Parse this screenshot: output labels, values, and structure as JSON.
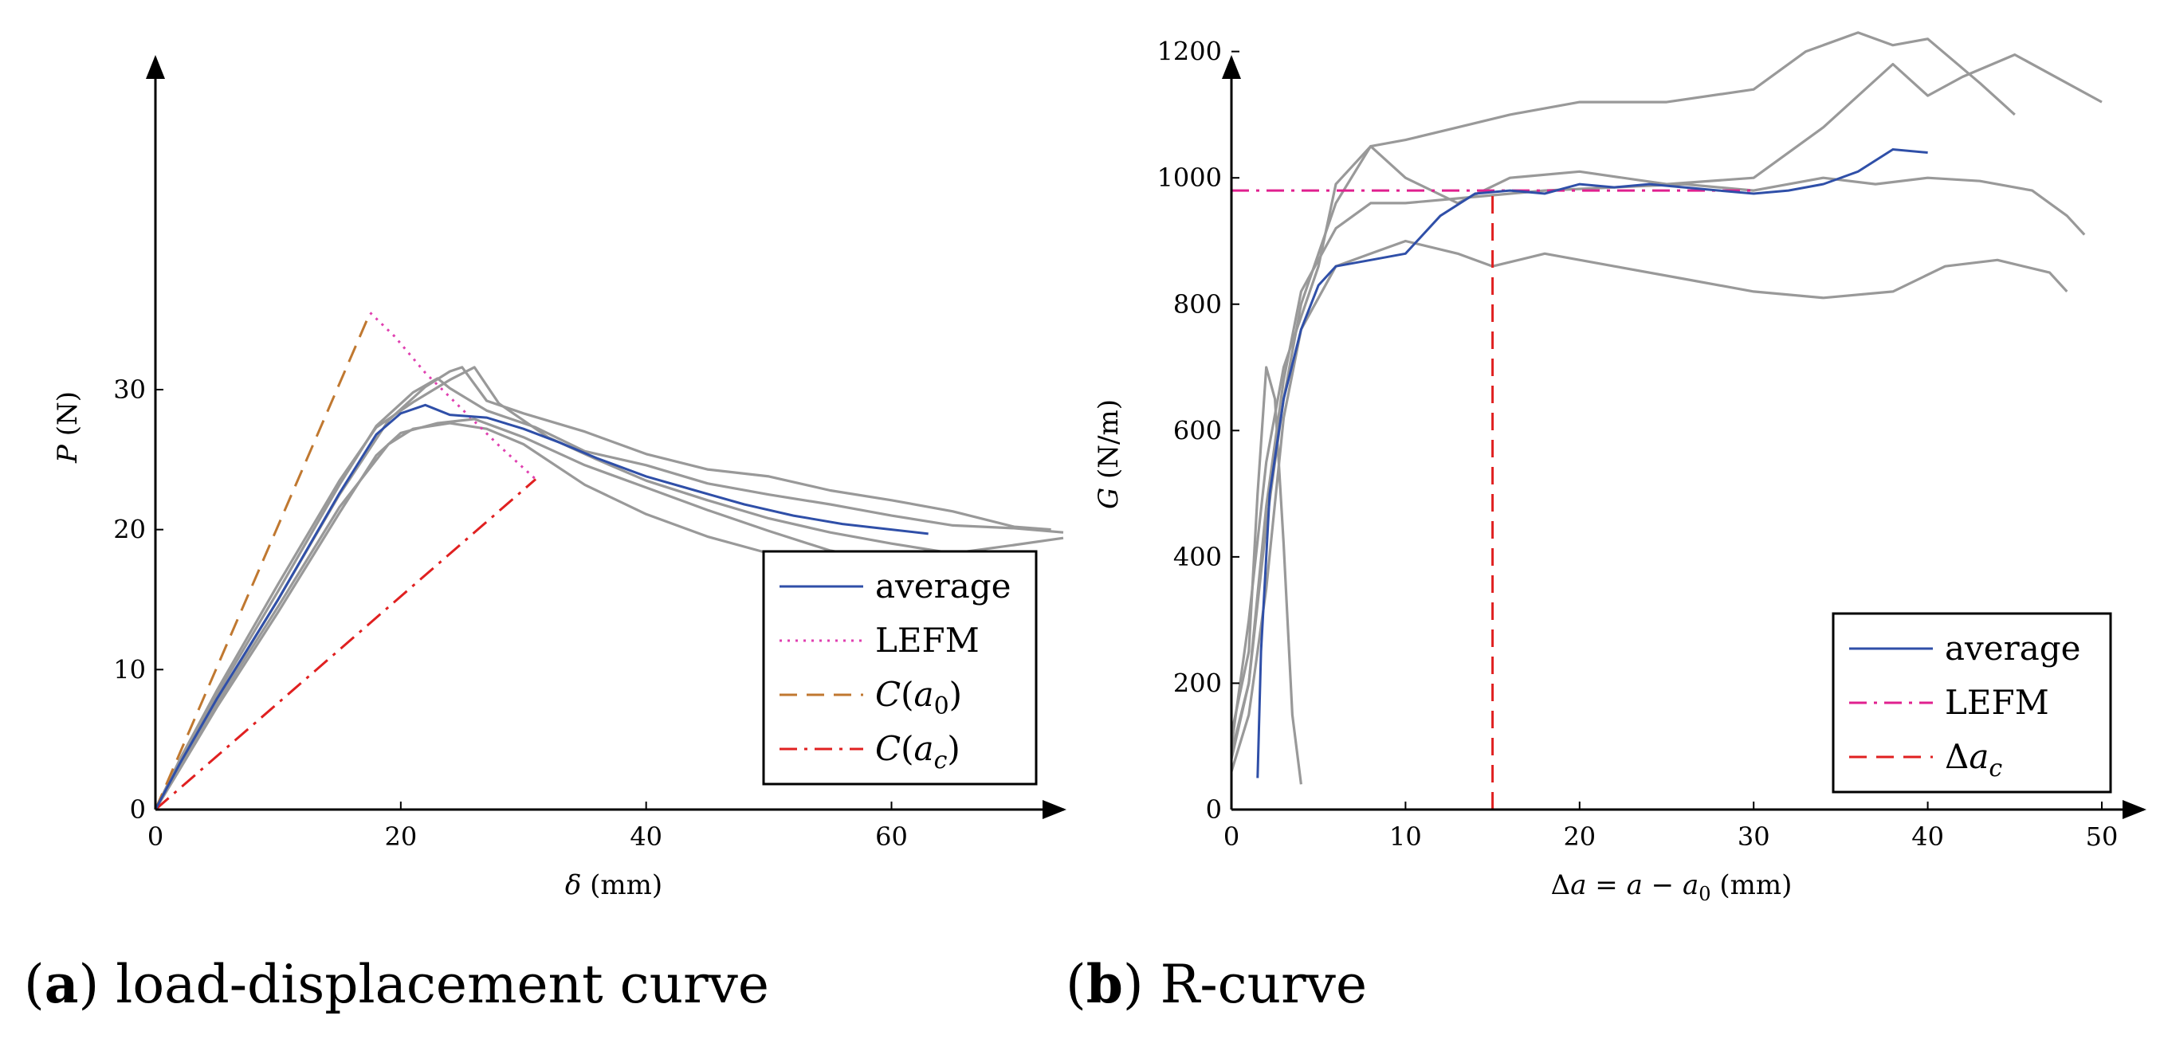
{
  "chart_data": [
    {
      "id": "a",
      "type": "line",
      "caption_letter": "a",
      "caption_text": "load-displacement curve",
      "xlabel": "δ (mm)",
      "ylabel": "P (N)",
      "xlim": [
        0,
        74
      ],
      "ylim": [
        0,
        37
      ],
      "xticks": [
        0,
        20,
        40,
        60
      ],
      "yticks": [
        0,
        10,
        20,
        30
      ],
      "grid": false,
      "legend_position": "bottom-right",
      "colors": {
        "specimens": "#999999",
        "average": "#2f4fa8",
        "LEFM": "#e040b0",
        "C_a0": "#c07830",
        "C_ac": "#e02020"
      },
      "specimens": [
        [
          [
            0,
            0
          ],
          [
            2,
            3.5
          ],
          [
            5,
            8.2
          ],
          [
            10,
            15.6
          ],
          [
            15,
            23.2
          ],
          [
            18,
            27.4
          ],
          [
            21,
            29.8
          ],
          [
            23,
            30.8
          ],
          [
            24,
            30.1
          ],
          [
            27,
            28.5
          ],
          [
            31,
            27.3
          ],
          [
            35,
            25.6
          ],
          [
            40,
            24.6
          ],
          [
            45,
            23.3
          ],
          [
            50,
            22.5
          ],
          [
            55,
            21.8
          ],
          [
            60,
            21.0
          ],
          [
            65,
            20.3
          ],
          [
            70,
            20.1
          ],
          [
            74,
            19.8
          ]
        ],
        [
          [
            0,
            0
          ],
          [
            2,
            3.2
          ],
          [
            5,
            7.8
          ],
          [
            10,
            15.0
          ],
          [
            15,
            22.5
          ],
          [
            19,
            27.8
          ],
          [
            22,
            30.2
          ],
          [
            24,
            31.3
          ],
          [
            25,
            31.6
          ],
          [
            27,
            29.2
          ],
          [
            30,
            28.3
          ],
          [
            35,
            27.0
          ],
          [
            40,
            25.4
          ],
          [
            45,
            24.3
          ],
          [
            50,
            23.8
          ],
          [
            55,
            22.8
          ],
          [
            60,
            22.1
          ],
          [
            65,
            21.3
          ],
          [
            70,
            20.2
          ],
          [
            73,
            20.0
          ]
        ],
        [
          [
            0,
            0
          ],
          [
            2,
            2.9
          ],
          [
            5,
            7.3
          ],
          [
            10,
            14.1
          ],
          [
            15,
            21.2
          ],
          [
            18,
            25.3
          ],
          [
            20,
            26.9
          ],
          [
            23,
            27.6
          ],
          [
            26,
            27.9
          ],
          [
            30,
            26.6
          ],
          [
            35,
            24.6
          ],
          [
            40,
            23.0
          ],
          [
            45,
            21.4
          ],
          [
            50,
            19.9
          ],
          [
            55,
            18.5
          ],
          [
            60,
            17.7
          ],
          [
            65,
            17.0
          ],
          [
            70,
            17.1
          ]
        ],
        [
          [
            0,
            0
          ],
          [
            2,
            3.6
          ],
          [
            5,
            8.5
          ],
          [
            10,
            16.1
          ],
          [
            15,
            23.5
          ],
          [
            18,
            27.3
          ],
          [
            21,
            29.1
          ],
          [
            24,
            30.7
          ],
          [
            26,
            31.6
          ],
          [
            28,
            29.0
          ],
          [
            32,
            26.6
          ],
          [
            36,
            25.0
          ],
          [
            40,
            23.5
          ],
          [
            45,
            22.1
          ],
          [
            50,
            20.8
          ],
          [
            55,
            19.8
          ],
          [
            60,
            19.0
          ],
          [
            65,
            18.3
          ],
          [
            70,
            18.9
          ],
          [
            74,
            19.4
          ]
        ],
        [
          [
            0,
            0
          ],
          [
            2,
            3.1
          ],
          [
            5,
            7.6
          ],
          [
            10,
            14.5
          ],
          [
            15,
            21.6
          ],
          [
            19,
            26.1
          ],
          [
            21,
            27.2
          ],
          [
            24,
            27.6
          ],
          [
            27,
            27.2
          ],
          [
            30,
            26.1
          ],
          [
            35,
            23.2
          ],
          [
            40,
            21.1
          ],
          [
            45,
            19.5
          ],
          [
            50,
            18.3
          ],
          [
            55,
            17.4
          ],
          [
            60,
            17.1
          ],
          [
            63,
            16.8
          ],
          [
            66,
            16.4
          ]
        ]
      ],
      "series": [
        {
          "name": "average",
          "points": [
            [
              0,
              0
            ],
            [
              2,
              3.3
            ],
            [
              5,
              7.9
            ],
            [
              10,
              15.0
            ],
            [
              15,
              22.6
            ],
            [
              18,
              26.8
            ],
            [
              20,
              28.3
            ],
            [
              22,
              28.9
            ],
            [
              24,
              28.2
            ],
            [
              27,
              28.0
            ],
            [
              30,
              27.2
            ],
            [
              33,
              26.2
            ],
            [
              36,
              25.1
            ],
            [
              40,
              23.8
            ],
            [
              44,
              22.8
            ],
            [
              48,
              21.8
            ],
            [
              52,
              21.0
            ],
            [
              56,
              20.4
            ],
            [
              60,
              20.0
            ],
            [
              63,
              19.7
            ]
          ]
        },
        {
          "name": "LEFM",
          "points": [
            [
              17.5,
              35.5
            ],
            [
              19.5,
              33.8
            ],
            [
              22,
              31.2
            ],
            [
              25,
              28.6
            ],
            [
              28,
              26.0
            ],
            [
              31,
              23.6
            ]
          ]
        },
        {
          "name": "C(a0)",
          "points": [
            [
              0,
              0
            ],
            [
              17.5,
              35.5
            ]
          ]
        },
        {
          "name": "C(ac)",
          "points": [
            [
              0,
              0
            ],
            [
              31,
              23.6
            ]
          ]
        }
      ],
      "legend": [
        {
          "key": "average",
          "label": "average",
          "style": "solid"
        },
        {
          "key": "LEFM",
          "label": "LEFM",
          "style": "dotted"
        },
        {
          "key": "C_a0",
          "label": "C(a0)",
          "style": "dashed"
        },
        {
          "key": "C_ac",
          "label": "C(ac)",
          "style": "dashdot"
        }
      ]
    },
    {
      "id": "b",
      "type": "line",
      "caption_letter": "b",
      "caption_text": "R-curve",
      "xlabel": "Δa = a − a0 (mm)",
      "ylabel": "G (N/m)",
      "xlim": [
        0,
        50
      ],
      "ylim": [
        0,
        1250
      ],
      "xticks": [
        0,
        10,
        20,
        30,
        40,
        50
      ],
      "yticks": [
        0,
        200,
        400,
        600,
        800,
        1000,
        1200
      ],
      "grid": false,
      "legend_position": "bottom-right",
      "colors": {
        "specimens": "#999999",
        "average": "#2f4fa8",
        "LEFM": "#e0208f",
        "delta_ac": "#e02020"
      },
      "specimens": [
        [
          [
            0,
            80
          ],
          [
            1,
            200
          ],
          [
            2,
            450
          ],
          [
            3,
            650
          ],
          [
            4,
            800
          ],
          [
            5,
            880
          ],
          [
            6,
            960
          ],
          [
            8,
            1050
          ],
          [
            10,
            1000
          ],
          [
            13,
            960
          ],
          [
            16,
            1000
          ],
          [
            20,
            1010
          ],
          [
            25,
            990
          ],
          [
            30,
            1000
          ],
          [
            34,
            1080
          ],
          [
            38,
            1180
          ],
          [
            40,
            1130
          ],
          [
            42,
            1160
          ],
          [
            45,
            1195
          ],
          [
            48,
            1150
          ],
          [
            50,
            1120
          ]
        ],
        [
          [
            0,
            100
          ],
          [
            1,
            300
          ],
          [
            2,
            550
          ],
          [
            3,
            700
          ],
          [
            4,
            780
          ],
          [
            5,
            860
          ],
          [
            6,
            990
          ],
          [
            8,
            1050
          ],
          [
            10,
            1060
          ],
          [
            13,
            1080
          ],
          [
            16,
            1100
          ],
          [
            20,
            1120
          ],
          [
            25,
            1120
          ],
          [
            30,
            1140
          ],
          [
            33,
            1200
          ],
          [
            36,
            1230
          ],
          [
            38,
            1210
          ],
          [
            40,
            1220
          ],
          [
            43,
            1150
          ],
          [
            45,
            1100
          ]
        ],
        [
          [
            0,
            120
          ],
          [
            1,
            250
          ],
          [
            1.5,
            500
          ],
          [
            2,
            700
          ],
          [
            2.5,
            650
          ],
          [
            3,
            420
          ],
          [
            3.5,
            150
          ],
          [
            4,
            40
          ]
        ],
        [
          [
            0,
            60
          ],
          [
            1,
            150
          ],
          [
            2,
            350
          ],
          [
            3,
            620
          ],
          [
            4,
            760
          ],
          [
            6,
            860
          ],
          [
            8,
            880
          ],
          [
            10,
            900
          ],
          [
            13,
            880
          ],
          [
            15,
            860
          ],
          [
            18,
            880
          ],
          [
            22,
            860
          ],
          [
            26,
            840
          ],
          [
            30,
            820
          ],
          [
            34,
            810
          ],
          [
            38,
            820
          ],
          [
            41,
            860
          ],
          [
            44,
            870
          ],
          [
            47,
            850
          ],
          [
            48,
            820
          ]
        ],
        [
          [
            0,
            90
          ],
          [
            1,
            200
          ],
          [
            2,
            480
          ],
          [
            3,
            680
          ],
          [
            4,
            820
          ],
          [
            6,
            920
          ],
          [
            8,
            960
          ],
          [
            10,
            960
          ],
          [
            14,
            970
          ],
          [
            18,
            980
          ],
          [
            22,
            985
          ],
          [
            26,
            990
          ],
          [
            30,
            980
          ],
          [
            34,
            1000
          ],
          [
            37,
            990
          ],
          [
            40,
            1000
          ],
          [
            43,
            995
          ],
          [
            46,
            980
          ],
          [
            48,
            940
          ],
          [
            49,
            910
          ]
        ]
      ],
      "series": [
        {
          "name": "average",
          "points": [
            [
              1.5,
              50
            ],
            [
              1.7,
              250
            ],
            [
              2.2,
              500
            ],
            [
              3,
              650
            ],
            [
              4,
              760
            ],
            [
              5,
              830
            ],
            [
              6,
              860
            ],
            [
              8,
              870
            ],
            [
              10,
              880
            ],
            [
              12,
              940
            ],
            [
              14,
              975
            ],
            [
              16,
              980
            ],
            [
              18,
              975
            ],
            [
              20,
              990
            ],
            [
              22,
              985
            ],
            [
              24,
              990
            ],
            [
              26,
              985
            ],
            [
              28,
              980
            ],
            [
              30,
              975
            ],
            [
              32,
              980
            ],
            [
              34,
              990
            ],
            [
              36,
              1010
            ],
            [
              38,
              1045
            ],
            [
              40,
              1040
            ]
          ]
        },
        {
          "name": "LEFM",
          "points": [
            [
              0,
              980
            ],
            [
              30,
              980
            ]
          ]
        },
        {
          "name": "Δac",
          "points": [
            [
              15,
              0
            ],
            [
              15,
              980
            ]
          ]
        }
      ],
      "legend": [
        {
          "key": "average",
          "label": "average",
          "style": "solid"
        },
        {
          "key": "LEFM",
          "label": "LEFM",
          "style": "dashdot"
        },
        {
          "key": "delta_ac",
          "label": "Δac",
          "style": "dashed"
        }
      ]
    }
  ]
}
